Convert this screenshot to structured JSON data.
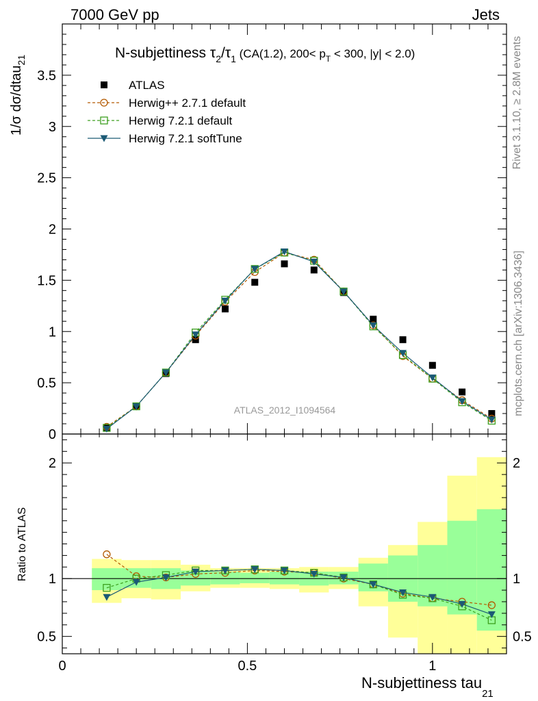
{
  "header": {
    "left": "7000 GeV pp",
    "right": "Jets"
  },
  "side": {
    "rivet": "Rivet 3.1.10, ≥ 2.8M events",
    "mcplots": "mcplots.cern.ch [arXiv:1306.3436]"
  },
  "title": {
    "main": "N-subjettiness ",
    "tau2": "τ",
    "tau2_sub": "2",
    "slash": "/",
    "tau1": "τ",
    "tau1_sub": "1",
    "cuts_a": " (CA(1.2), 200< p",
    "cuts_sub": "T",
    "cuts_b": " < 300, |y| < 2.0)"
  },
  "watermark": "ATLAS_2012_I1094564",
  "colors": {
    "atlas": "#000000",
    "herwigpp": "#b35900",
    "herwig721": "#3c9f1e",
    "softtune": "#1b5a75",
    "band_inner": "#99ff99",
    "band_outer": "#ffff99"
  },
  "chart_data": [
    {
      "type": "line",
      "panel": "main",
      "ylabel_main": "1/σ dσ/dtau",
      "ylabel_sub": "21",
      "xlim": [
        0,
        1.2
      ],
      "ylim": [
        0,
        4.0
      ],
      "yticks": [
        0,
        0.5,
        1,
        1.5,
        2,
        2.5,
        3,
        3.5
      ],
      "ytick_labels": [
        "0",
        "0.5",
        "1",
        "1.5",
        "2",
        "2.5",
        "3",
        "3.5"
      ],
      "x": [
        0.12,
        0.2,
        0.28,
        0.36,
        0.44,
        0.52,
        0.6,
        0.68,
        0.76,
        0.84,
        0.92,
        1.0,
        1.08,
        1.16
      ],
      "legend_position": "top-left",
      "series": [
        {
          "name": "ATLAS",
          "marker": "filled-square",
          "line": "none",
          "values": [
            0.06,
            0.27,
            0.59,
            0.92,
            1.22,
            1.48,
            1.66,
            1.6,
            1.38,
            1.12,
            0.92,
            0.67,
            0.41,
            0.2
          ]
        },
        {
          "name": "Herwig++ 2.7.1 default",
          "marker": "open-circle",
          "line": "dashed",
          "values": [
            0.07,
            0.27,
            0.6,
            0.96,
            1.29,
            1.58,
            1.77,
            1.7,
            1.39,
            1.06,
            0.76,
            0.54,
            0.33,
            0.15
          ]
        },
        {
          "name": "Herwig 7.2.1 default",
          "marker": "open-square",
          "line": "dashed",
          "values": [
            0.06,
            0.27,
            0.6,
            0.99,
            1.31,
            1.61,
            1.77,
            1.69,
            1.39,
            1.05,
            0.77,
            0.54,
            0.31,
            0.13
          ]
        },
        {
          "name": "Herwig 7.2.1 softTune",
          "marker": "filled-triangle-down",
          "line": "solid",
          "values": [
            0.05,
            0.27,
            0.6,
            0.97,
            1.3,
            1.61,
            1.78,
            1.68,
            1.39,
            1.06,
            0.79,
            0.55,
            0.32,
            0.14
          ]
        }
      ]
    },
    {
      "type": "line",
      "panel": "ratio",
      "ylabel": "Ratio to ATLAS",
      "xlabel_main": "N-subjettiness tau",
      "xlabel_sub": "21",
      "xlim": [
        0,
        1.2
      ],
      "ylim": [
        0.35,
        2.25
      ],
      "reference_line": 1,
      "yticks": [
        0.5,
        1,
        2
      ],
      "ytick_labels": [
        "0.5",
        "1",
        "2"
      ],
      "xticks": [
        0,
        0.5,
        1
      ],
      "xtick_labels": [
        "0",
        "0.5",
        "1"
      ],
      "x": [
        0.12,
        0.2,
        0.28,
        0.36,
        0.44,
        0.52,
        0.6,
        0.68,
        0.76,
        0.84,
        0.92,
        1.0,
        1.08,
        1.16
      ],
      "bin_edges": [
        0.08,
        0.16,
        0.24,
        0.32,
        0.4,
        0.48,
        0.56,
        0.64,
        0.72,
        0.8,
        0.88,
        0.96,
        1.04,
        1.12,
        1.2
      ],
      "band_outer": {
        "low": [
          0.79,
          0.83,
          0.82,
          0.89,
          0.92,
          0.92,
          0.91,
          0.88,
          0.91,
          0.76,
          0.49,
          0.34,
          0.18,
          0.18
        ],
        "high": [
          1.17,
          1.16,
          1.16,
          1.12,
          1.09,
          1.09,
          1.09,
          1.1,
          1.1,
          1.18,
          1.29,
          1.49,
          1.89,
          2.05
        ]
      },
      "band_inner": {
        "low": [
          0.9,
          0.92,
          0.91,
          0.94,
          0.95,
          0.96,
          0.95,
          0.94,
          0.95,
          0.89,
          0.8,
          0.76,
          0.69,
          0.55
        ],
        "high": [
          1.09,
          1.09,
          1.09,
          1.07,
          1.06,
          1.05,
          1.06,
          1.06,
          1.06,
          1.13,
          1.2,
          1.29,
          1.5,
          1.6
        ]
      },
      "series": [
        {
          "name": "Herwig++ 2.7.1 default",
          "marker": "open-circle",
          "line": "dashed",
          "values": [
            1.21,
            1.02,
            1.01,
            1.04,
            1.05,
            1.07,
            1.06,
            1.05,
            1.0,
            0.95,
            0.87,
            0.83,
            0.8,
            0.77
          ]
        },
        {
          "name": "Herwig 7.2.1 default",
          "marker": "open-square",
          "line": "dashed",
          "values": [
            0.92,
            1.0,
            1.03,
            1.07,
            1.07,
            1.08,
            1.07,
            1.05,
            1.01,
            0.95,
            0.86,
            0.83,
            0.76,
            0.64
          ]
        },
        {
          "name": "Herwig 7.2.1 softTune",
          "marker": "filled-triangle-down",
          "line": "solid",
          "values": [
            0.84,
            0.97,
            1.01,
            1.06,
            1.07,
            1.08,
            1.07,
            1.04,
            1.01,
            0.95,
            0.88,
            0.84,
            0.78,
            0.69
          ]
        }
      ]
    }
  ]
}
